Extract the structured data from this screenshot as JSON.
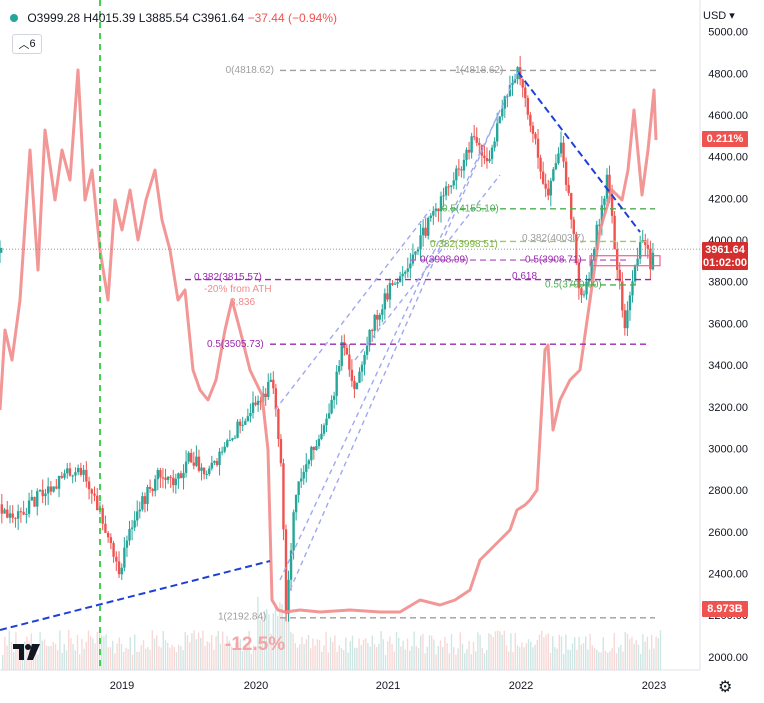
{
  "header": {
    "symbol_status_color": "#26a69a",
    "open": "O3999.28",
    "high": "H4015.39",
    "low": "L3885.54",
    "close": "C3961.64",
    "change": "−37.44 (−0.94%)",
    "layers_count": "6",
    "currency_label": "USD ▾"
  },
  "price_axis": {
    "ticks": [
      "5000.00",
      "4800.00",
      "4600.00",
      "4400.00",
      "4200.00",
      "4000.00",
      "3800.00",
      "3600.00",
      "3400.00",
      "3200.00",
      "3000.00",
      "2800.00",
      "2600.00",
      "2400.00",
      "2200.00",
      "2000.00"
    ],
    "last_price_label": "3961.64",
    "countdown_label": "01:02:00",
    "overlay_label_1": "0.211%",
    "overlay_label_2": "8.973B"
  },
  "time_axis": {
    "ticks": [
      "2019",
      "2020",
      "2021",
      "2022",
      "2023"
    ]
  },
  "annotations": {
    "fib_0": "0(4818.62)",
    "fib_1_top": "1(4818.62)",
    "fib_382_a": "0.382(3815.57)",
    "ath_text": "-20% from ATH",
    "ath_value": "3,836",
    "fib_5_a": "0.5(3505.73)",
    "fib_5_b": "0.5(4155.10)",
    "fib_382_b": "0.382(3998.51)",
    "fib_382_c": "0.382(4003.7)",
    "fib_0_b": "0(3908.99)",
    "fib_5_c": "0.5(3908.71)",
    "fib_618": "0.618",
    "fib_5_d": "0.5(3790.00)",
    "fib_bottom": "1(2192.84)",
    "drawdown": "-12.5%"
  },
  "chart_data": {
    "type": "candlestick",
    "series": [
      {
        "x": [
          "2018",
          "2019",
          "2019-12",
          "2020-02",
          "2020-03",
          "2021",
          "2022",
          "2022-10",
          "2023"
        ],
        "values": [
          2700,
          2400,
          3200,
          3380,
          2192.84,
          3750,
          4818.62,
          3580,
          3961.64
        ]
      },
      {
        "x": [],
        "values": []
      }
    ],
    "ylim": [
      1950,
      5050
    ],
    "price_levels": [
      4818.62,
      4155.1,
      3998.51,
      3908.99,
      3815.57,
      3505.73,
      2192.84
    ],
    "colors": {
      "up": "#26a69a",
      "down": "#ef5350",
      "overlay": "#f28b8b",
      "fib_green": "#4caf50",
      "fib_purple": "#9c27b0",
      "trend_blue": "#1e40d8"
    }
  }
}
